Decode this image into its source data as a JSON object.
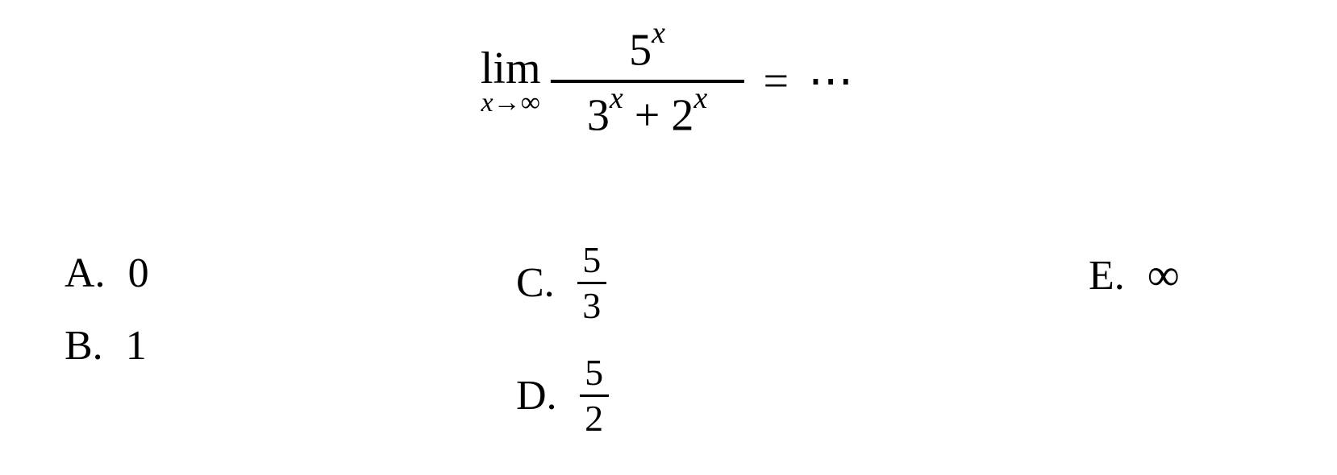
{
  "equation": {
    "lim_text": "lim",
    "lim_sub_var": "x",
    "lim_sub_arrow": "→",
    "lim_sub_target": "∞",
    "numerator_base": "5",
    "numerator_exp": "x",
    "denom_term1_base": "3",
    "denom_term1_exp": "x",
    "denom_plus": " + ",
    "denom_term2_base": "2",
    "denom_term2_exp": "x",
    "equals": "=",
    "dots": "⋯"
  },
  "options": {
    "a": {
      "label": "A.",
      "value": "0"
    },
    "b": {
      "label": "B.",
      "value": "1"
    },
    "c": {
      "label": "C.",
      "num": "5",
      "den": "3"
    },
    "d": {
      "label": "D.",
      "num": "5",
      "den": "2"
    },
    "e": {
      "label": "E.",
      "value": "∞"
    }
  },
  "style": {
    "background_color": "#ffffff",
    "text_color": "#000000",
    "font_family": "Times New Roman",
    "equation_fontsize": 56,
    "option_fontsize": 52,
    "subscript_fontsize": 34,
    "superscript_fontsize": 38,
    "mini_fraction_fontsize": 46,
    "frac_line_thickness": 4,
    "mini_frac_line_thickness": 3
  }
}
